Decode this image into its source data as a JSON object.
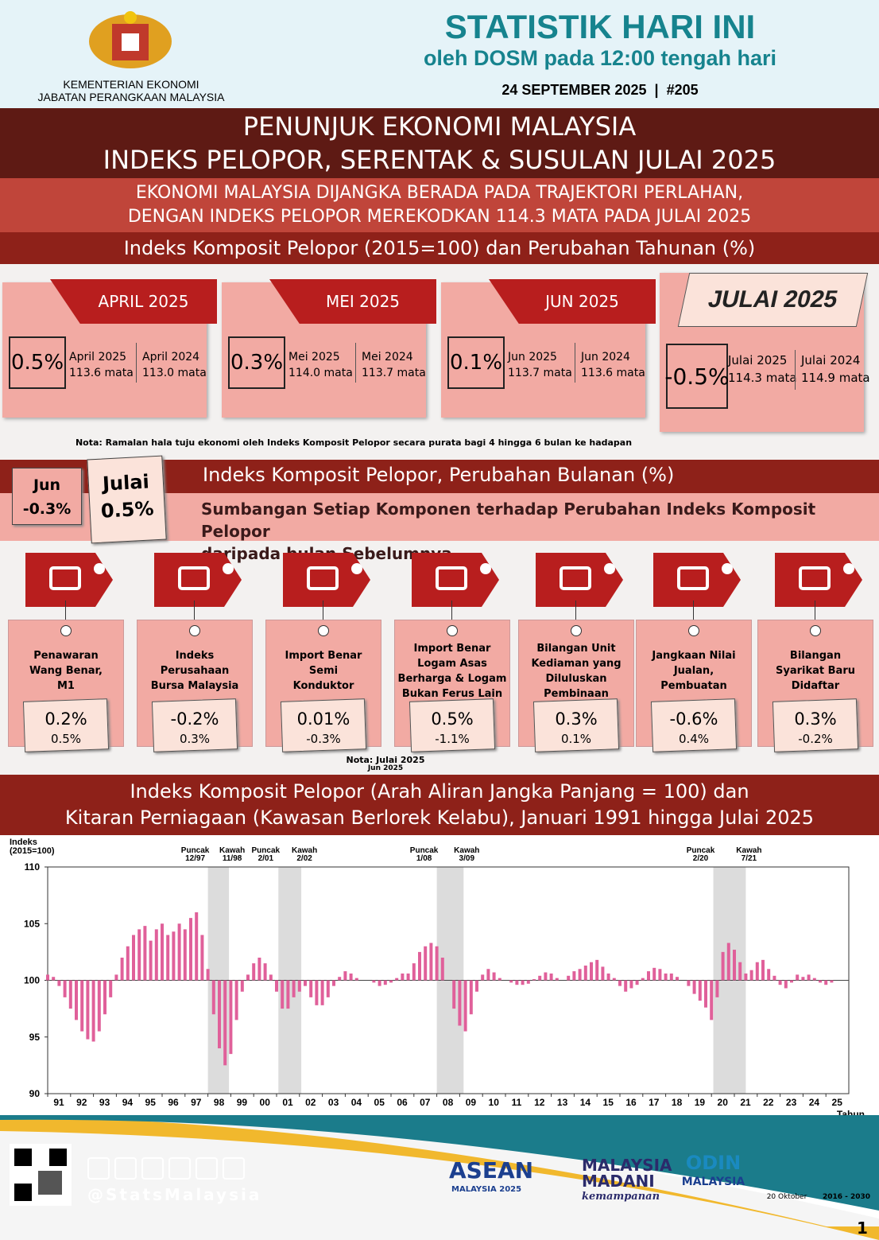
{
  "header": {
    "ministry": [
      "KEMENTERIAN EKONOMI",
      "JABATAN PERANGKAAN MALAYSIA"
    ],
    "title": "STATISTIK HARI INI",
    "subtitle": "oleh DOSM pada 12:00 tengah hari",
    "date": "24 SEPTEMBER 2025",
    "separator": "|",
    "issue": "#205"
  },
  "banner": [
    "PENUNJUK EKONOMI MALAYSIA",
    "INDEKS PELOPOR, SERENTAK & SUSULAN JULAI 2025"
  ],
  "headline": [
    "EKONOMI MALAYSIA DIJANGKA BERADA PADA TRAJEKTORI PERLAHAN,",
    "DENGAN INDEKS PELOPOR MEREKODKAN 114.3 MATA PADA JULAI 2025"
  ],
  "annual_title": "Indeks Komposit Pelopor (2015=100) dan Perubahan Tahunan (%)",
  "cards": [
    {
      "month": "APRIL 2025",
      "change": "0.5%",
      "cur_label": "April 2025",
      "cur_value": "113.6 mata",
      "prev_label": "April 2024",
      "prev_value": "113.0 mata"
    },
    {
      "month": "MEI 2025",
      "change": "0.3%",
      "cur_label": "Mei 2025",
      "cur_value": "114.0 mata",
      "prev_label": "Mei 2024",
      "prev_value": "113.7 mata"
    },
    {
      "month": "JUN 2025",
      "change": "0.1%",
      "cur_label": "Jun 2025",
      "cur_value": "113.7 mata",
      "prev_label": "Jun 2024",
      "prev_value": "113.6 mata"
    },
    {
      "month": "JULAI 2025",
      "change": "-0.5%",
      "cur_label": "Julai 2025",
      "cur_value": "114.3 mata",
      "prev_label": "Julai 2024",
      "prev_value": "114.9 mata"
    }
  ],
  "annual_note": "Nota: Ramalan hala tuju ekonomi oleh Indeks Komposit Pelopor secara purata bagi 4 hingga 6 bulan ke hadapan",
  "monthly": {
    "title": "Indeks Komposit Pelopor, Perubahan Bulanan (%)",
    "subtitle": [
      "Sumbangan Setiap Komponen terhadap Perubahan Indeks Komposit Pelopor",
      "daripada bulan Sebelumnya"
    ],
    "boxes": [
      {
        "label": "Jun",
        "value": "-0.3%"
      },
      {
        "label": "Julai",
        "value": "0.5%"
      }
    ]
  },
  "components": [
    {
      "name": [
        "Penawaran",
        "Wang Benar,",
        "M1"
      ],
      "current": "0.2%",
      "previous": "0.5%"
    },
    {
      "name": [
        "Indeks",
        "Perusahaan",
        "Bursa Malaysia"
      ],
      "current": "-0.2%",
      "previous": "0.3%"
    },
    {
      "name": [
        "Import Benar",
        "Semi",
        "Konduktor"
      ],
      "current": "0.01%",
      "previous": "-0.3%"
    },
    {
      "name": [
        "Import Benar",
        "Logam Asas",
        "Berharga & Logam",
        "Bukan Ferus Lain"
      ],
      "current": "0.5%",
      "previous": "-1.1%"
    },
    {
      "name": [
        "Bilangan Unit",
        "Kediaman yang",
        "Diluluskan",
        "Pembinaan"
      ],
      "current": "0.3%",
      "previous": "0.1%"
    },
    {
      "name": [
        "Jangkaan Nilai",
        "Jualan,",
        "Pembuatan"
      ],
      "current": "-0.6%",
      "previous": "0.4%"
    },
    {
      "name": [
        "Bilangan",
        "Syarikat Baru",
        "Didaftar"
      ],
      "current": "0.3%",
      "previous": "-0.2%"
    }
  ],
  "components_note": [
    "Nota: Julai 2025",
    "Jun 2025"
  ],
  "chart_title": [
    "Indeks Komposit Pelopor (Arah Aliran Jangka Panjang = 100) dan",
    "Kitaran Perniagaan (Kawasan Berlorek Kelabu), Januari 1991 hingga Julai 2025"
  ],
  "chart_data": {
    "type": "bar",
    "ylabel": [
      "Indeks",
      "(2015=100)"
    ],
    "xlabel": "Tahun",
    "color": "#e0609a",
    "baseline": 100,
    "ylim": [
      90,
      110
    ],
    "yticks": [
      90,
      95,
      100,
      105,
      110
    ],
    "xlim": [
      1991,
      2026
    ],
    "xticks": [
      {
        "value": 1991,
        "label": "91"
      },
      {
        "value": 1992,
        "label": "92"
      },
      {
        "value": 1993,
        "label": "93"
      },
      {
        "value": 1994,
        "label": "94"
      },
      {
        "value": 1995,
        "label": "95"
      },
      {
        "value": 1996,
        "label": "96"
      },
      {
        "value": 1997,
        "label": "97"
      },
      {
        "value": 1998,
        "label": "98"
      },
      {
        "value": 1999,
        "label": "99"
      },
      {
        "value": 2000,
        "label": "00"
      },
      {
        "value": 2001,
        "label": "01"
      },
      {
        "value": 2002,
        "label": "02"
      },
      {
        "value": 2003,
        "label": "03"
      },
      {
        "value": 2004,
        "label": "04"
      },
      {
        "value": 2005,
        "label": "05"
      },
      {
        "value": 2006,
        "label": "06"
      },
      {
        "value": 2007,
        "label": "07"
      },
      {
        "value": 2008,
        "label": "08"
      },
      {
        "value": 2009,
        "label": "09"
      },
      {
        "value": 2010,
        "label": "10"
      },
      {
        "value": 2011,
        "label": "11"
      },
      {
        "value": 2012,
        "label": "12"
      },
      {
        "value": 2013,
        "label": "13"
      },
      {
        "value": 2014,
        "label": "14"
      },
      {
        "value": 2015,
        "label": "15"
      },
      {
        "value": 2016,
        "label": "16"
      },
      {
        "value": 2017,
        "label": "17"
      },
      {
        "value": 2018,
        "label": "18"
      },
      {
        "value": 2019,
        "label": "19"
      },
      {
        "value": 2020,
        "label": "20"
      },
      {
        "value": 2021,
        "label": "21"
      },
      {
        "value": 2022,
        "label": "22"
      },
      {
        "value": 2023,
        "label": "23"
      },
      {
        "value": 2024,
        "label": "24"
      },
      {
        "value": 2025,
        "label": "25"
      }
    ],
    "shaded": [
      {
        "start": 1998,
        "end": 1998.92,
        "peak": "Puncak",
        "peak_date": "12/97",
        "trough": "Kawah",
        "trough_date": "11/98"
      },
      {
        "start": 2001.08,
        "end": 2002.08,
        "peak": "Puncak",
        "peak_date": "2/01",
        "trough": "Kawah",
        "trough_date": "2/02"
      },
      {
        "start": 2008,
        "end": 2009.17,
        "peak": "Puncak",
        "peak_date": "1/08",
        "trough": "Kawah",
        "trough_date": "3/09"
      },
      {
        "start": 2020.08,
        "end": 2021.5,
        "peak": "Puncak",
        "peak_date": "2/20",
        "trough": "Kawah",
        "trough_date": "7/21"
      }
    ],
    "x": [
      1991,
      1991.25,
      1991.5,
      1991.75,
      1992,
      1992.25,
      1992.5,
      1992.75,
      1993,
      1993.25,
      1993.5,
      1993.75,
      1994,
      1994.25,
      1994.5,
      1994.75,
      1995,
      1995.25,
      1995.5,
      1995.75,
      1996,
      1996.25,
      1996.5,
      1996.75,
      1997,
      1997.25,
      1997.5,
      1997.75,
      1998,
      1998.25,
      1998.5,
      1998.75,
      1999,
      1999.25,
      1999.5,
      1999.75,
      2000,
      2000.25,
      2000.5,
      2000.75,
      2001,
      2001.25,
      2001.5,
      2001.75,
      2002,
      2002.25,
      2002.5,
      2002.75,
      2003,
      2003.25,
      2003.5,
      2003.75,
      2004,
      2004.25,
      2004.5,
      2004.75,
      2005,
      2005.25,
      2005.5,
      2005.75,
      2006,
      2006.25,
      2006.5,
      2006.75,
      2007,
      2007.25,
      2007.5,
      2007.75,
      2008,
      2008.25,
      2008.5,
      2008.75,
      2009,
      2009.25,
      2009.5,
      2009.75,
      2010,
      2010.25,
      2010.5,
      2010.75,
      2011,
      2011.25,
      2011.5,
      2011.75,
      2012,
      2012.25,
      2012.5,
      2012.75,
      2013,
      2013.25,
      2013.5,
      2013.75,
      2014,
      2014.25,
      2014.5,
      2014.75,
      2015,
      2015.25,
      2015.5,
      2015.75,
      2016,
      2016.25,
      2016.5,
      2016.75,
      2017,
      2017.25,
      2017.5,
      2017.75,
      2018,
      2018.25,
      2018.5,
      2018.75,
      2019,
      2019.25,
      2019.5,
      2019.75,
      2020,
      2020.25,
      2020.5,
      2020.75,
      2021,
      2021.25,
      2021.5,
      2021.75,
      2022,
      2022.25,
      2022.5,
      2022.75,
      2023,
      2023.25,
      2023.5,
      2023.75,
      2024,
      2024.25,
      2024.5,
      2024.75,
      2025,
      2025.25,
      2025.5
    ],
    "values": [
      100.5,
      100.3,
      99.5,
      98.5,
      97.5,
      96.5,
      95.5,
      94.8,
      94.6,
      95.5,
      97,
      98.5,
      100.5,
      102,
      103,
      104,
      104.5,
      104.8,
      103.5,
      104.5,
      105,
      104,
      104.3,
      105,
      104.5,
      105.5,
      106,
      104,
      101,
      97,
      94,
      92.5,
      93.5,
      96.5,
      99,
      100.5,
      101.5,
      102,
      101.5,
      100.5,
      99,
      97.5,
      97.5,
      98.5,
      99,
      99.5,
      98.5,
      97.8,
      97.8,
      98.5,
      99.5,
      100.3,
      100.8,
      100.6,
      100.2,
      100,
      100,
      99.8,
      99.5,
      99.6,
      99.8,
      100.2,
      100.6,
      100.6,
      101.5,
      102.5,
      103,
      103.3,
      103,
      102,
      100,
      97.5,
      96,
      95.5,
      97,
      99,
      100.5,
      101,
      100.7,
      100.2,
      100,
      99.8,
      99.6,
      99.6,
      99.7,
      100.1,
      100.4,
      100.7,
      100.6,
      100.2,
      100,
      100.4,
      100.8,
      101,
      101.3,
      101.6,
      101.8,
      101.2,
      100.6,
      100.2,
      99.5,
      99,
      99.3,
      99.6,
      100.2,
      100.8,
      101.1,
      101,
      100.6,
      100.6,
      100.3,
      100,
      99.5,
      98.8,
      98.2,
      97.6,
      96.5,
      98.5,
      102.5,
      103.3,
      102.7,
      101.6,
      100.6,
      100.9,
      101.6,
      101.8,
      101,
      100.4,
      99.6,
      99.3,
      99.8,
      100.5,
      100.3,
      100.5,
      100.2,
      99.8,
      99.6,
      99.8,
      100
    ]
  },
  "footer": {
    "handle": "@StatsMalaysia",
    "logos": [
      "ASEAN",
      "MALAYSIA 2025",
      "MALAYSIA",
      "MADANI",
      "kemampanan",
      "ODIN",
      "MALAYSIA",
      "20 Oktober",
      "2016 - 2030"
    ],
    "page": "1"
  }
}
